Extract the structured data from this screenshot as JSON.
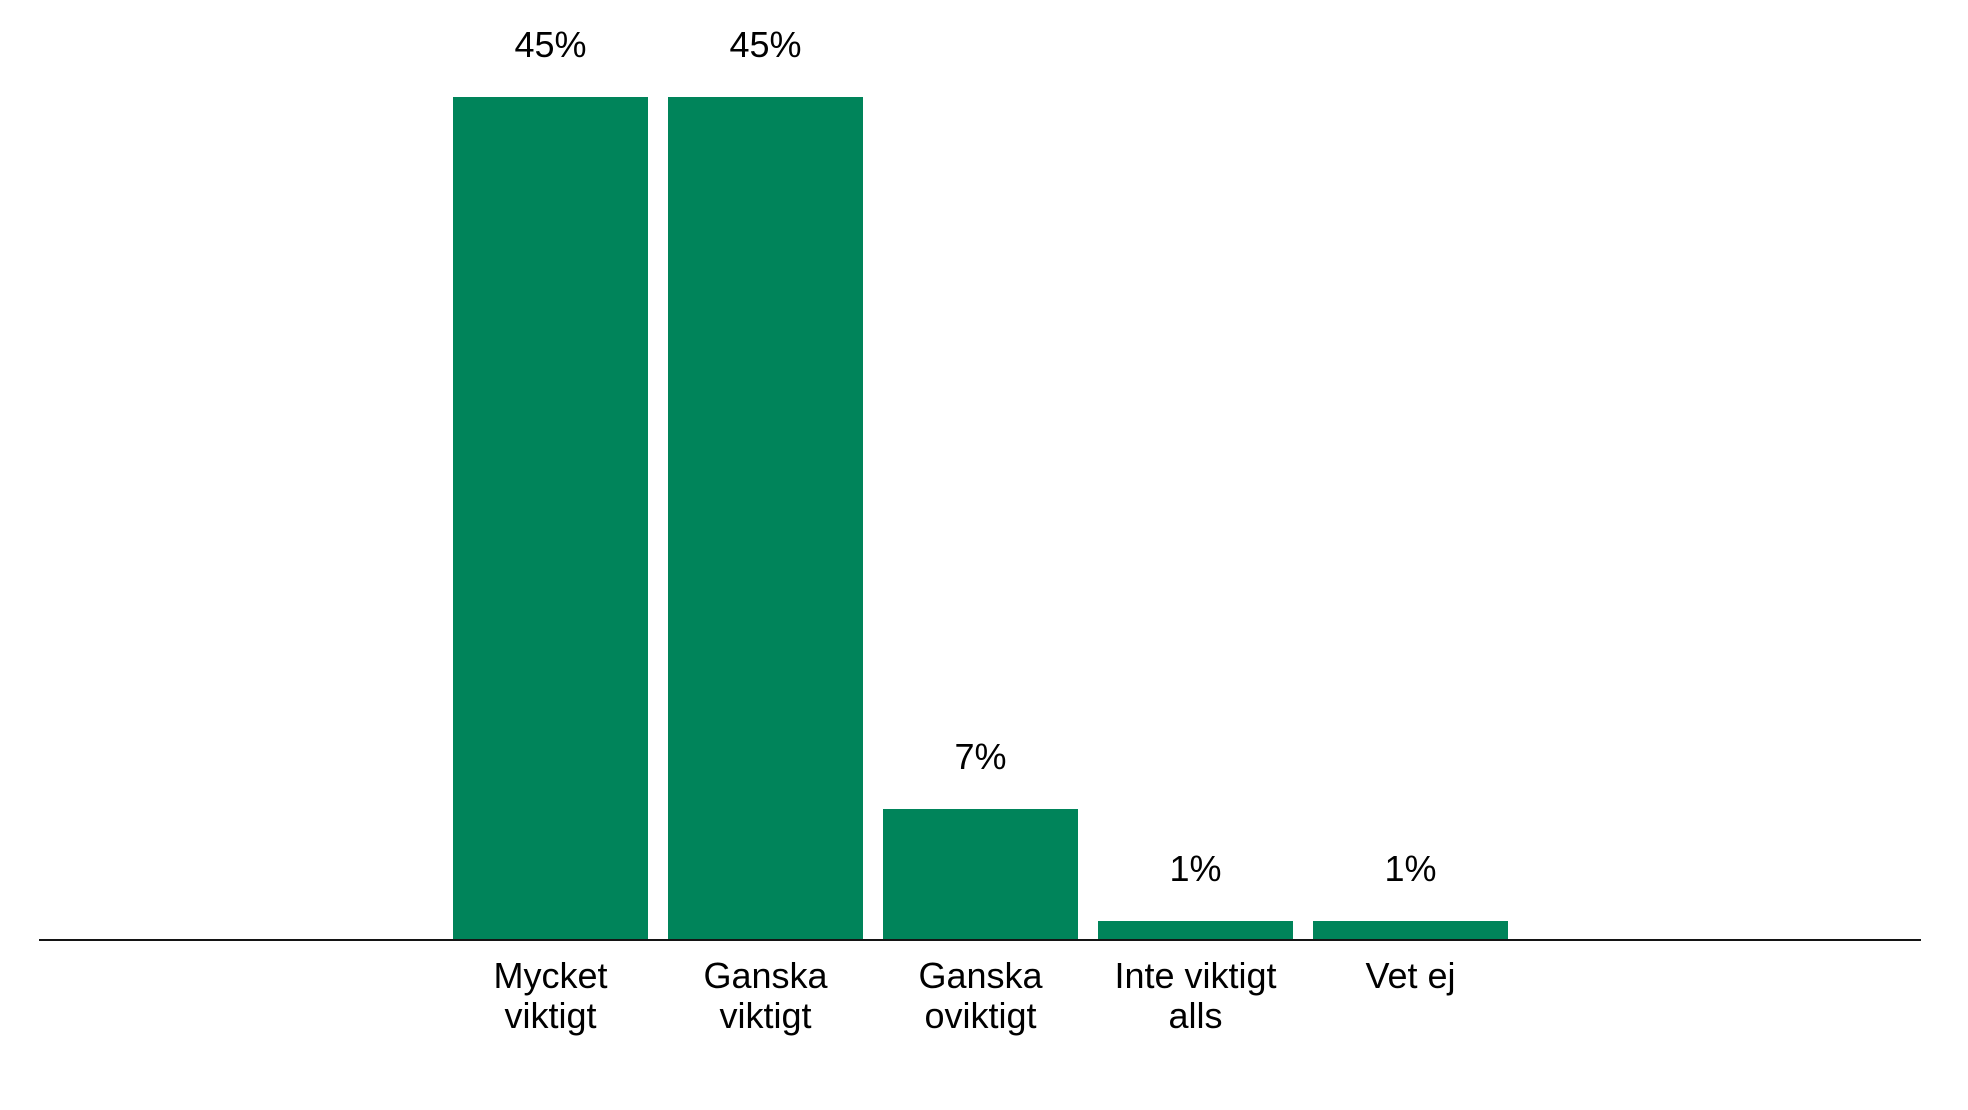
{
  "chart_data": {
    "type": "bar",
    "title": "",
    "xlabel": "",
    "ylabel": "",
    "categories": [
      "Mycket viktigt",
      "Ganska viktigt",
      "Ganska oviktigt",
      "Inte viktigt alls",
      "Vet ej"
    ],
    "categories_lines": [
      [
        "Mycket",
        "viktigt"
      ],
      [
        "Ganska",
        "viktigt"
      ],
      [
        "Ganska",
        "oviktigt"
      ],
      [
        "Inte viktigt",
        "alls"
      ],
      [
        "Vet ej"
      ]
    ],
    "values": [
      45,
      45,
      7,
      1,
      1
    ],
    "value_labels": [
      "45%",
      "45%",
      "7%",
      "1%",
      "1%"
    ],
    "ylim": [
      0,
      45
    ],
    "grid": false,
    "legend_position": "none",
    "y_axis_visible": false,
    "colors": {
      "bar": "#00845A",
      "axis": "#141414",
      "text": "#000000",
      "background": "#ffffff"
    }
  }
}
